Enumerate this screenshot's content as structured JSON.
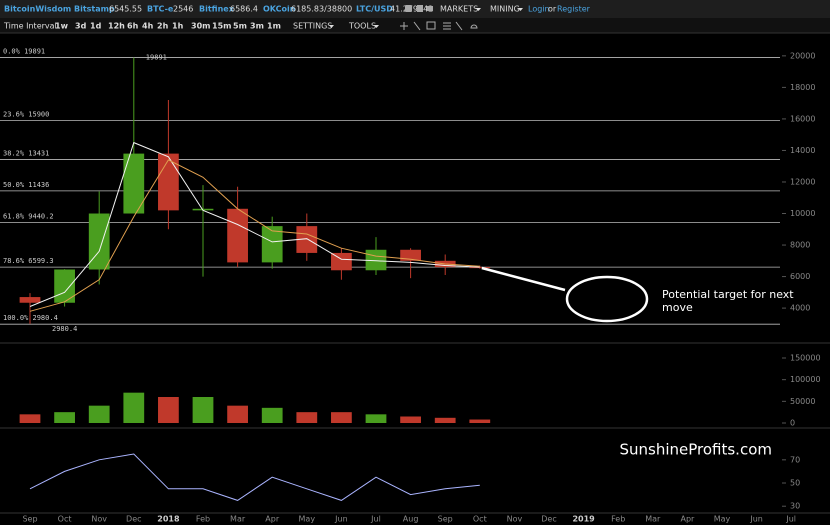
{
  "header": {
    "brand": "BitcoinWisdom",
    "tickers": [
      {
        "name": "Bitstamp",
        "price": "6545.55"
      },
      {
        "name": "BTC-e",
        "price": "2546"
      },
      {
        "name": "Bitfinex",
        "price": "6586.4"
      },
      {
        "name": "OKCoin",
        "price": "6185.83/38800"
      },
      {
        "name": "LTC/USD",
        "price": "41.279542"
      }
    ],
    "menus": [
      "MARKETS",
      "MINING"
    ],
    "login": "Login",
    "or": "or",
    "register": "Register"
  },
  "toolbar": {
    "label": "Time Interval:",
    "intervals": [
      "1w",
      "3d",
      "1d",
      "12h",
      "6h",
      "4h",
      "2h",
      "1h",
      "30m",
      "15m",
      "5m",
      "3m",
      "1m"
    ],
    "selected": "1d",
    "menus": [
      "SETTINGS",
      "TOOLS"
    ]
  },
  "watermark": "SunshineProfits.com",
  "chart_data": [
    {
      "type": "candlestick",
      "categories": [
        "Sep",
        "Oct",
        "Nov",
        "Dec",
        "2018",
        "Feb",
        "Mar",
        "Apr",
        "May",
        "Jun",
        "Jul",
        "Aug",
        "Sep",
        "Oct",
        "Nov",
        "Dec",
        "2019",
        "Feb",
        "Mar",
        "Apr",
        "May",
        "Jun",
        "Jul"
      ],
      "open": [
        4700,
        4340,
        6450,
        10000,
        13800,
        10200,
        10300,
        6900,
        9200,
        7500,
        6400,
        7700,
        7000,
        6600,
        null,
        null,
        null,
        null,
        null,
        null,
        null,
        null,
        null
      ],
      "high": [
        4950,
        6470,
        11400,
        19891,
        17200,
        11800,
        11700,
        9800,
        10000,
        7800,
        8500,
        7800,
        7400,
        6700,
        null,
        null,
        null,
        null,
        null,
        null,
        null,
        null,
        null
      ],
      "low": [
        3000,
        4100,
        5500,
        10000,
        9000,
        6000,
        6600,
        6500,
        7000,
        5800,
        6100,
        5900,
        6100,
        6500,
        null,
        null,
        null,
        null,
        null,
        null,
        null,
        null,
        null
      ],
      "close": [
        4340,
        6450,
        10000,
        13800,
        10200,
        10300,
        6900,
        9200,
        7500,
        6400,
        7700,
        7000,
        6600,
        6545,
        null,
        null,
        null,
        null,
        null,
        null,
        null,
        null,
        null
      ],
      "up_color": "#4a9e1f",
      "down_color": "#c0392b",
      "series": [
        {
          "color": "#f2f2f2",
          "values": [
            4100,
            5000,
            7600,
            14500,
            13600,
            10200,
            9300,
            8200,
            8400,
            7100,
            7000,
            6900,
            6700,
            6600,
            null,
            null,
            null,
            null,
            null,
            null,
            null,
            null,
            null
          ]
        },
        {
          "color": "#e0a050",
          "values": [
            3800,
            4400,
            5800,
            9800,
            13400,
            12300,
            10300,
            8900,
            8700,
            7800,
            7300,
            7100,
            6800,
            6650,
            null,
            null,
            null,
            null,
            null,
            null,
            null,
            null,
            null
          ]
        }
      ],
      "ylim": [
        1850,
        21450
      ],
      "yticks": [
        4000,
        6000,
        8000,
        10000,
        12000,
        14000,
        16000,
        18000,
        20000
      ],
      "fib_levels": [
        {
          "value": 19891,
          "label": "0.0% 19891"
        },
        {
          "value": 15900,
          "label": "23.6% 15900"
        },
        {
          "value": 13431,
          "label": "38.2% 13431"
        },
        {
          "value": 11436,
          "label": "50.0% 11436"
        },
        {
          "value": 9440.2,
          "label": "61.8% 9440.2"
        },
        {
          "value": 6599.3,
          "label": "78.6% 6599.3"
        },
        {
          "value": 2980.4,
          "label": "100.0% 2980.4"
        }
      ],
      "annotations": [
        {
          "value": 19891,
          "label": "19891"
        },
        {
          "value": 2980.4,
          "label": "2980.4"
        }
      ],
      "target_note": "Potential target for next move"
    },
    {
      "type": "bar",
      "values": [
        20000,
        25000,
        40000,
        70000,
        60000,
        60000,
        40000,
        35000,
        25000,
        25000,
        20000,
        15000,
        12000,
        8000,
        null,
        null,
        null,
        null,
        null,
        null,
        null,
        null,
        null
      ],
      "ylim": [
        0,
        180000
      ],
      "yticks": [
        0,
        50000,
        100000,
        150000
      ]
    },
    {
      "type": "line",
      "color": "#aab4ff",
      "values": [
        45,
        60,
        70,
        75,
        45,
        45,
        35,
        55,
        45,
        35,
        55,
        40,
        45,
        48,
        null,
        null,
        null,
        null,
        null,
        null,
        null,
        null,
        null
      ],
      "ylim": [
        25,
        94
      ],
      "yticks": [
        30,
        50,
        70
      ]
    }
  ]
}
